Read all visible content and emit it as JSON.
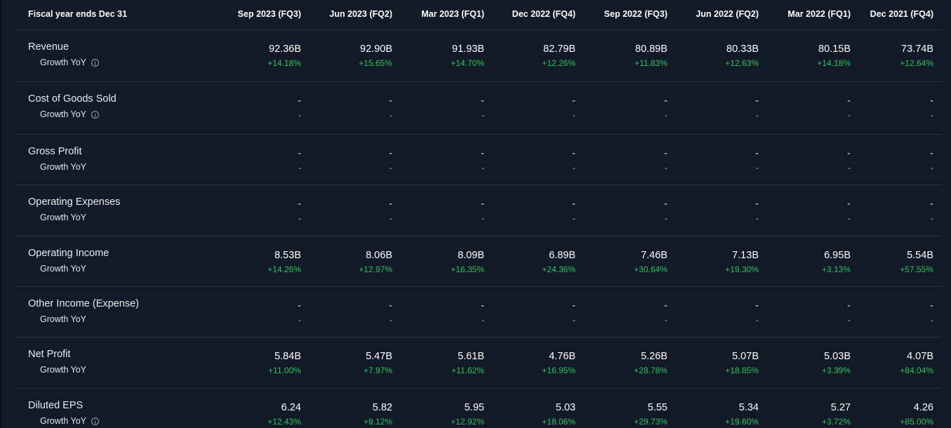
{
  "colors": {
    "background": "#131a27",
    "divider": "#2b3445",
    "positive": "#22c55e",
    "text": "#ffffff"
  },
  "header": {
    "label": "Fiscal year ends Dec 31",
    "columns": [
      "Sep 2023 (FQ3)",
      "Jun 2023 (FQ2)",
      "Mar 2023 (FQ1)",
      "Dec 2022 (FQ4)",
      "Sep 2022 (FQ3)",
      "Jun 2022 (FQ2)",
      "Mar 2022 (FQ1)",
      "Dec 2021 (FQ4)"
    ]
  },
  "rows": [
    {
      "label": "Revenue",
      "sub_label": "Growth YoY",
      "info_icon": true,
      "values": [
        "92.36B",
        "92.90B",
        "91.93B",
        "82.79B",
        "80.89B",
        "80.33B",
        "80.15B",
        "73.74B"
      ],
      "growth": [
        "+14.18%",
        "+15.65%",
        "+14.70%",
        "+12.26%",
        "+11.83%",
        "+12.63%",
        "+14.18%",
        "+12.64%"
      ]
    },
    {
      "label": "Cost of Goods Sold",
      "sub_label": "Growth YoY",
      "info_icon": true,
      "values": [
        "-",
        "-",
        "-",
        "-",
        "-",
        "-",
        "-",
        "-"
      ],
      "growth": [
        "-",
        "-",
        "-",
        "-",
        "-",
        "-",
        "-",
        "-"
      ]
    },
    {
      "label": "Gross Profit",
      "sub_label": "Growth YoY",
      "info_icon": false,
      "values": [
        "-",
        "-",
        "-",
        "-",
        "-",
        "-",
        "-",
        "-"
      ],
      "growth": [
        "-",
        "-",
        "-",
        "-",
        "-",
        "-",
        "-",
        "-"
      ]
    },
    {
      "label": "Operating Expenses",
      "sub_label": "Growth YoY",
      "info_icon": false,
      "values": [
        "-",
        "-",
        "-",
        "-",
        "-",
        "-",
        "-",
        "-"
      ],
      "growth": [
        "-",
        "-",
        "-",
        "-",
        "-",
        "-",
        "-",
        "-"
      ]
    },
    {
      "label": "Operating Income",
      "sub_label": "Growth YoY",
      "info_icon": false,
      "values": [
        "8.53B",
        "8.06B",
        "8.09B",
        "6.89B",
        "7.46B",
        "7.13B",
        "6.95B",
        "5.54B"
      ],
      "growth": [
        "+14.26%",
        "+12.97%",
        "+16.35%",
        "+24.36%",
        "+30.64%",
        "+19.30%",
        "+3.13%",
        "+57.55%"
      ]
    },
    {
      "label": "Other Income (Expense)",
      "sub_label": "Growth YoY",
      "info_icon": false,
      "values": [
        "-",
        "-",
        "-",
        "-",
        "-",
        "-",
        "-",
        "-"
      ],
      "growth": [
        "-",
        "-",
        "-",
        "-",
        "-",
        "-",
        "-",
        "-"
      ]
    },
    {
      "label": "Net Profit",
      "sub_label": "Growth YoY",
      "info_icon": false,
      "values": [
        "5.84B",
        "5.47B",
        "5.61B",
        "4.76B",
        "5.26B",
        "5.07B",
        "5.03B",
        "4.07B"
      ],
      "growth": [
        "+11.00%",
        "+7.97%",
        "+11.62%",
        "+16.95%",
        "+28.78%",
        "+18.85%",
        "+3.39%",
        "+84.04%"
      ]
    },
    {
      "label": "Diluted EPS",
      "sub_label": "Growth YoY",
      "info_icon": true,
      "values": [
        "6.24",
        "5.82",
        "5.95",
        "5.03",
        "5.55",
        "5.34",
        "5.27",
        "4.26"
      ],
      "growth": [
        "+12.43%",
        "+9.12%",
        "+12.92%",
        "+18.06%",
        "+29.73%",
        "+19.60%",
        "+3.72%",
        "+85.00%"
      ]
    }
  ]
}
